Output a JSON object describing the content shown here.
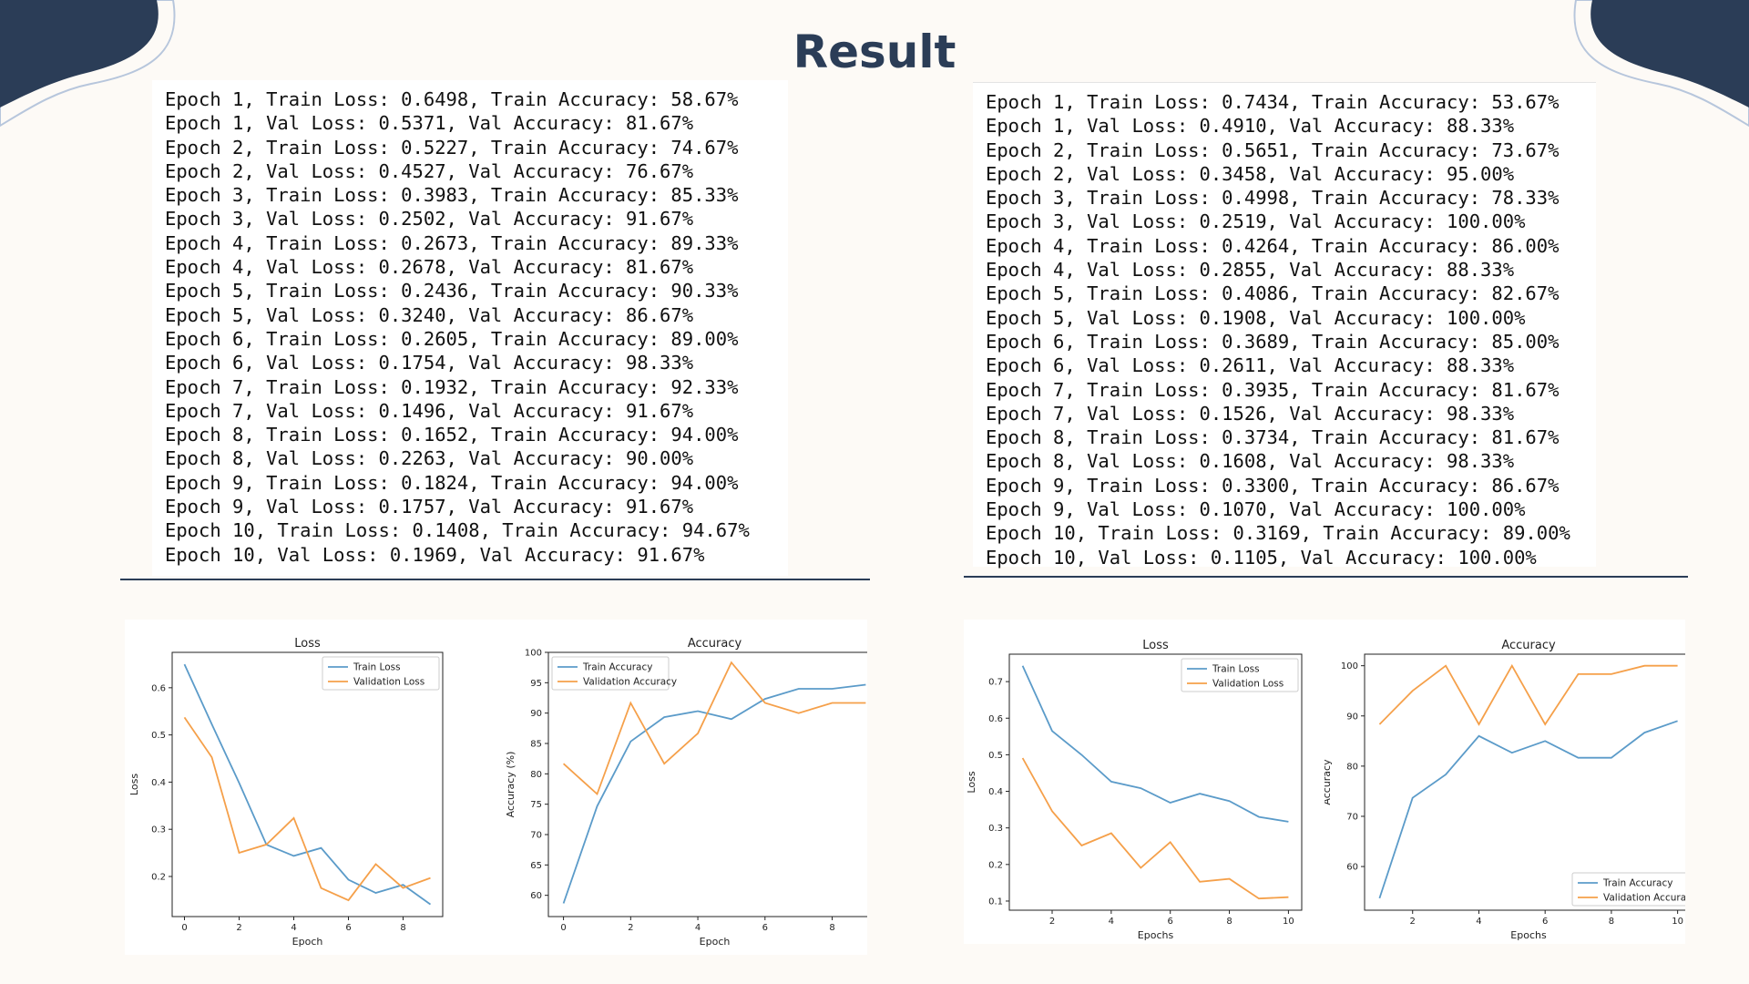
{
  "title": "Result",
  "colors": {
    "navy": "#2b3d57",
    "train": "#5b9bc9",
    "val": "#f5a04a"
  },
  "logs": {
    "left": [
      "Epoch 1, Train Loss: 0.6498, Train Accuracy: 58.67%",
      "Epoch 1, Val Loss: 0.5371, Val Accuracy: 81.67%",
      "Epoch 2, Train Loss: 0.5227, Train Accuracy: 74.67%",
      "Epoch 2, Val Loss: 0.4527, Val Accuracy: 76.67%",
      "Epoch 3, Train Loss: 0.3983, Train Accuracy: 85.33%",
      "Epoch 3, Val Loss: 0.2502, Val Accuracy: 91.67%",
      "Epoch 4, Train Loss: 0.2673, Train Accuracy: 89.33%",
      "Epoch 4, Val Loss: 0.2678, Val Accuracy: 81.67%",
      "Epoch 5, Train Loss: 0.2436, Train Accuracy: 90.33%",
      "Epoch 5, Val Loss: 0.3240, Val Accuracy: 86.67%",
      "Epoch 6, Train Loss: 0.2605, Train Accuracy: 89.00%",
      "Epoch 6, Val Loss: 0.1754, Val Accuracy: 98.33%",
      "Epoch 7, Train Loss: 0.1932, Train Accuracy: 92.33%",
      "Epoch 7, Val Loss: 0.1496, Val Accuracy: 91.67%",
      "Epoch 8, Train Loss: 0.1652, Train Accuracy: 94.00%",
      "Epoch 8, Val Loss: 0.2263, Val Accuracy: 90.00%",
      "Epoch 9, Train Loss: 0.1824, Train Accuracy: 94.00%",
      "Epoch 9, Val Loss: 0.1757, Val Accuracy: 91.67%",
      "Epoch 10, Train Loss: 0.1408, Train Accuracy: 94.67%",
      "Epoch 10, Val Loss: 0.1969, Val Accuracy: 91.67%"
    ],
    "right": [
      "Epoch 1, Train Loss: 0.7434, Train Accuracy: 53.67%",
      "Epoch 1, Val Loss: 0.4910, Val Accuracy: 88.33%",
      "Epoch 2, Train Loss: 0.5651, Train Accuracy: 73.67%",
      "Epoch 2, Val Loss: 0.3458, Val Accuracy: 95.00%",
      "Epoch 3, Train Loss: 0.4998, Train Accuracy: 78.33%",
      "Epoch 3, Val Loss: 0.2519, Val Accuracy: 100.00%",
      "Epoch 4, Train Loss: 0.4264, Train Accuracy: 86.00%",
      "Epoch 4, Val Loss: 0.2855, Val Accuracy: 88.33%",
      "Epoch 5, Train Loss: 0.4086, Train Accuracy: 82.67%",
      "Epoch 5, Val Loss: 0.1908, Val Accuracy: 100.00%",
      "Epoch 6, Train Loss: 0.3689, Train Accuracy: 85.00%",
      "Epoch 6, Val Loss: 0.2611, Val Accuracy: 88.33%",
      "Epoch 7, Train Loss: 0.3935, Train Accuracy: 81.67%",
      "Epoch 7, Val Loss: 0.1526, Val Accuracy: 98.33%",
      "Epoch 8, Train Loss: 0.3734, Train Accuracy: 81.67%",
      "Epoch 8, Val Loss: 0.1608, Val Accuracy: 98.33%",
      "Epoch 9, Train Loss: 0.3300, Train Accuracy: 86.67%",
      "Epoch 9, Val Loss: 0.1070, Val Accuracy: 100.00%",
      "Epoch 10, Train Loss: 0.3169, Train Accuracy: 89.00%",
      "Epoch 10, Val Loss: 0.1105, Val Accuracy: 100.00%"
    ]
  },
  "chart_data": [
    {
      "type": "line",
      "title": "Loss",
      "xlabel": "Epoch",
      "ylabel": "Loss",
      "x": [
        0,
        1,
        2,
        3,
        4,
        5,
        6,
        7,
        8,
        9
      ],
      "xlim": [
        -0.45,
        9.45
      ],
      "ylim": [
        0.115,
        0.675
      ],
      "xticks": [
        0,
        2,
        4,
        6,
        8
      ],
      "yticks": [
        0.2,
        0.3,
        0.4,
        0.5,
        0.6
      ],
      "tick_decimals": 1,
      "grid": false,
      "legend": "upper-right",
      "series": [
        {
          "name": "Train Loss",
          "values": [
            0.6498,
            0.5227,
            0.3983,
            0.2673,
            0.2436,
            0.2605,
            0.1932,
            0.1652,
            0.1824,
            0.1408
          ]
        },
        {
          "name": "Validation Loss",
          "values": [
            0.5371,
            0.4527,
            0.2502,
            0.2678,
            0.324,
            0.1754,
            0.1496,
            0.2263,
            0.1757,
            0.1969
          ]
        }
      ]
    },
    {
      "type": "line",
      "title": "Accuracy",
      "xlabel": "Epoch",
      "ylabel": "Accuracy (%)",
      "x": [
        0,
        1,
        2,
        3,
        4,
        5,
        6,
        7,
        8,
        9
      ],
      "xlim": [
        -0.45,
        9.45
      ],
      "ylim": [
        56.5,
        100
      ],
      "xticks": [
        0,
        2,
        4,
        6,
        8
      ],
      "yticks": [
        60,
        65,
        70,
        75,
        80,
        85,
        90,
        95,
        100
      ],
      "tick_decimals": 0,
      "grid": false,
      "legend": "upper-left",
      "series": [
        {
          "name": "Train Accuracy",
          "values": [
            58.67,
            74.67,
            85.33,
            89.33,
            90.33,
            89.0,
            92.33,
            94.0,
            94.0,
            94.67
          ]
        },
        {
          "name": "Validation Accuracy",
          "values": [
            81.67,
            76.67,
            91.67,
            81.67,
            86.67,
            98.33,
            91.67,
            90.0,
            91.67,
            91.67
          ]
        }
      ]
    },
    {
      "type": "line",
      "title": "Loss",
      "xlabel": "Epochs",
      "ylabel": "Loss",
      "x": [
        1,
        2,
        3,
        4,
        5,
        6,
        7,
        8,
        9,
        10
      ],
      "xlim": [
        0.55,
        10.45
      ],
      "ylim": [
        0.075,
        0.775
      ],
      "xticks": [
        2,
        4,
        6,
        8,
        10
      ],
      "yticks": [
        0.1,
        0.2,
        0.3,
        0.4,
        0.5,
        0.6,
        0.7
      ],
      "tick_decimals": 1,
      "grid": false,
      "legend": "upper-right",
      "series": [
        {
          "name": "Train Loss",
          "values": [
            0.7434,
            0.5651,
            0.4998,
            0.4264,
            0.4086,
            0.3689,
            0.3935,
            0.3734,
            0.33,
            0.3169
          ]
        },
        {
          "name": "Validation Loss",
          "values": [
            0.491,
            0.3458,
            0.2519,
            0.2855,
            0.1908,
            0.2611,
            0.1526,
            0.1608,
            0.107,
            0.1105
          ]
        }
      ]
    },
    {
      "type": "line",
      "title": "Accuracy",
      "xlabel": "Epochs",
      "ylabel": "Accuracy",
      "x": [
        1,
        2,
        3,
        4,
        5,
        6,
        7,
        8,
        9,
        10
      ],
      "xlim": [
        0.55,
        10.45
      ],
      "ylim": [
        51.3,
        102.3
      ],
      "xticks": [
        2,
        4,
        6,
        8,
        10
      ],
      "yticks": [
        60,
        70,
        80,
        90,
        100
      ],
      "tick_decimals": 0,
      "grid": false,
      "legend": "lower-right",
      "series": [
        {
          "name": "Train Accuracy",
          "values": [
            53.67,
            73.67,
            78.33,
            86.0,
            82.67,
            85.0,
            81.67,
            81.67,
            86.67,
            89.0
          ]
        },
        {
          "name": "Validation Accuracy",
          "values": [
            88.33,
            95.0,
            100.0,
            88.33,
            100.0,
            88.33,
            98.33,
            98.33,
            100.0,
            100.0
          ]
        }
      ]
    }
  ]
}
